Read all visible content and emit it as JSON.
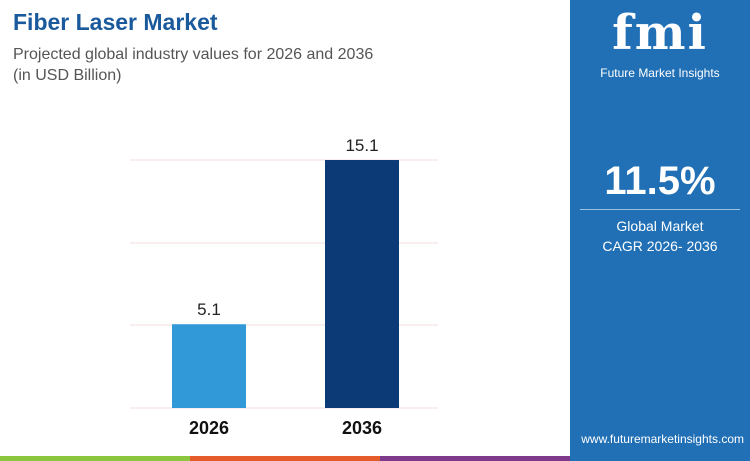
{
  "header": {
    "title": "Fiber Laser Market",
    "subtitle": "Projected global industry values for 2026 and 2036",
    "unit": "(in USD Billion)"
  },
  "side": {
    "logo": "fmi",
    "logo_text": "Future Market Insights",
    "cagr": "11.5%",
    "cagr_label1": "Global Market",
    "cagr_label2": "CAGR 2026- 2036",
    "url": "www.futuremarketinsights.com",
    "bg": "#2170b6"
  },
  "chart_data": {
    "type": "bar",
    "categories": [
      "2026",
      "2036"
    ],
    "values": [
      5.1,
      15.1
    ],
    "labels": [
      "5.1",
      "15.1"
    ],
    "colors": [
      "#3199d8",
      "#0c3a76"
    ],
    "ylim": [
      0,
      15.1
    ],
    "grid": true,
    "title": "Fiber Laser Market",
    "xlabel": "",
    "ylabel": ""
  },
  "strip_colors": [
    "#8cc63f",
    "#e55b2b",
    "#7f3a8c"
  ]
}
